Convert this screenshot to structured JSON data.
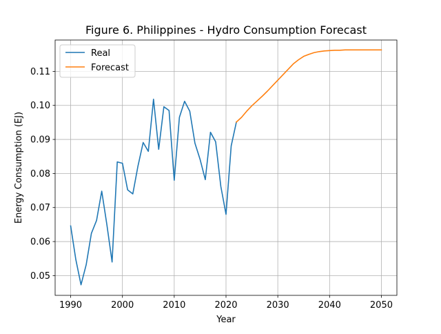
{
  "chart_data": {
    "type": "line",
    "title": "Figure 6. Philippines - Hydro Consumption Forecast",
    "xlabel": "Year",
    "ylabel": "Energy Consumption (EJ)",
    "xlim": [
      1987.0,
      2053.0
    ],
    "ylim": [
      0.0442,
      0.1192
    ],
    "xticks": [
      1990,
      2000,
      2010,
      2020,
      2030,
      2040,
      2050
    ],
    "yticks": [
      0.05,
      0.06,
      0.07,
      0.08,
      0.09,
      0.1,
      0.11
    ],
    "ytick_labels": [
      "0.05",
      "0.06",
      "0.07",
      "0.08",
      "0.09",
      "0.10",
      "0.11"
    ],
    "grid": true,
    "legend_position": "upper-left",
    "series": [
      {
        "name": "Real",
        "color": "#1f77b4",
        "x": [
          1990,
          1991,
          1992,
          1993,
          1994,
          1995,
          1996,
          1997,
          1998,
          1999,
          2000,
          2001,
          2002,
          2003,
          2004,
          2005,
          2006,
          2007,
          2008,
          2009,
          2010,
          2011,
          2012,
          2013,
          2014,
          2015,
          2016,
          2017,
          2018,
          2019,
          2020,
          2021,
          2022
        ],
        "y": [
          0.0646,
          0.0547,
          0.0473,
          0.0532,
          0.0624,
          0.0662,
          0.0748,
          0.0649,
          0.054,
          0.0834,
          0.083,
          0.0752,
          0.074,
          0.0822,
          0.0891,
          0.0865,
          0.1018,
          0.0871,
          0.0996,
          0.0985,
          0.078,
          0.0965,
          0.1012,
          0.0983,
          0.0889,
          0.0841,
          0.0782,
          0.0921,
          0.0893,
          0.0762,
          0.068,
          0.0881,
          0.0951
        ]
      },
      {
        "name": "Forecast",
        "color": "#ff7f0e",
        "x": [
          2022,
          2023,
          2024,
          2025,
          2026,
          2027,
          2028,
          2029,
          2030,
          2031,
          2032,
          2033,
          2034,
          2035,
          2036,
          2037,
          2038,
          2039,
          2040,
          2041,
          2042,
          2043,
          2044,
          2045,
          2046,
          2047,
          2048,
          2049,
          2050
        ],
        "y": [
          0.0951,
          0.0965,
          0.0983,
          0.0999,
          0.1013,
          0.1027,
          0.1042,
          0.1058,
          0.1074,
          0.109,
          0.1106,
          0.1122,
          0.1134,
          0.1144,
          0.115,
          0.1155,
          0.1158,
          0.116,
          0.1161,
          0.1162,
          0.1162,
          0.1163,
          0.1163,
          0.1163,
          0.1163,
          0.1163,
          0.1163,
          0.1163,
          0.1163
        ]
      }
    ]
  }
}
